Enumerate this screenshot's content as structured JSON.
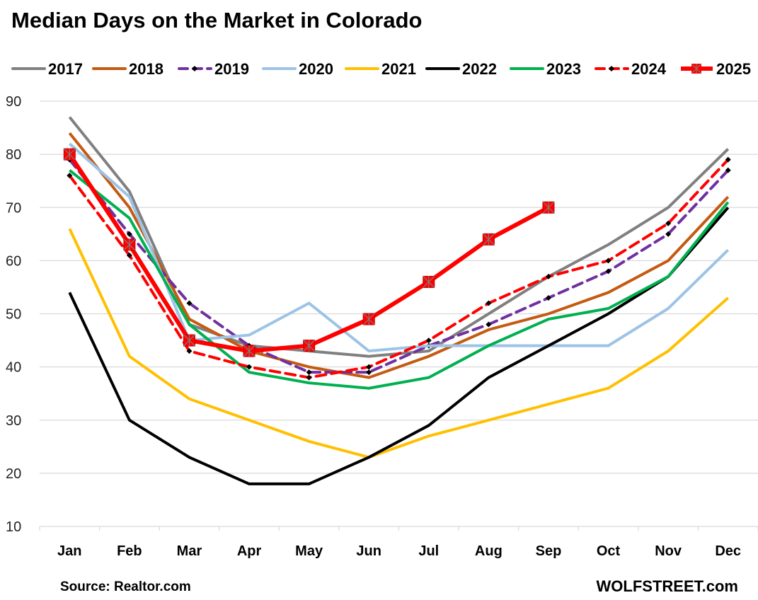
{
  "chart_data": {
    "type": "line",
    "title": "Median Days on the Market in Colorado",
    "xlabel": "",
    "ylabel": "",
    "categories": [
      "Jan",
      "Feb",
      "Mar",
      "Apr",
      "May",
      "Jun",
      "Jul",
      "Aug",
      "Sep",
      "Oct",
      "Nov",
      "Dec"
    ],
    "ylim": [
      10,
      90
    ],
    "yticks": [
      10,
      20,
      30,
      40,
      50,
      60,
      70,
      80,
      90
    ],
    "grid": true,
    "legend_position": "top",
    "series": [
      {
        "name": "2017",
        "color": "#808080",
        "style": "solid",
        "markers": "none",
        "values": [
          87,
          73,
          48,
          44,
          43,
          42,
          43,
          50,
          57,
          63,
          70,
          81
        ]
      },
      {
        "name": "2018",
        "color": "#C55A11",
        "style": "solid",
        "markers": "none",
        "values": [
          84,
          70,
          49,
          43,
          40,
          38,
          42,
          47,
          50,
          54,
          60,
          72
        ]
      },
      {
        "name": "2019",
        "color": "#7030A0",
        "style": "dashed",
        "markers": "diamond",
        "values": [
          79,
          65,
          52,
          44,
          39,
          39,
          44,
          48,
          53,
          58,
          65,
          77
        ]
      },
      {
        "name": "2020",
        "color": "#9DC3E6",
        "style": "solid",
        "markers": "none",
        "values": [
          82,
          72,
          45,
          46,
          52,
          43,
          44,
          44,
          44,
          44,
          51,
          62
        ]
      },
      {
        "name": "2021",
        "color": "#FFC000",
        "style": "solid",
        "markers": "none",
        "values": [
          66,
          42,
          34,
          30,
          26,
          23,
          27,
          30,
          33,
          36,
          43,
          53
        ]
      },
      {
        "name": "2022",
        "color": "#000000",
        "style": "solid",
        "markers": "none",
        "values": [
          54,
          30,
          23,
          18,
          18,
          23,
          29,
          38,
          44,
          50,
          57,
          70
        ]
      },
      {
        "name": "2023",
        "color": "#00B050",
        "style": "solid",
        "markers": "none",
        "values": [
          77,
          68,
          48,
          39,
          37,
          36,
          38,
          44,
          49,
          51,
          57,
          71
        ]
      },
      {
        "name": "2024",
        "color": "#FF0000",
        "style": "dashed",
        "markers": "diamond",
        "values": [
          76,
          61,
          43,
          40,
          38,
          40,
          45,
          52,
          57,
          60,
          67,
          79
        ]
      },
      {
        "name": "2025",
        "color": "#FF0000",
        "style": "solid-thick",
        "markers": "square",
        "values": [
          80,
          63,
          45,
          43,
          44,
          49,
          56,
          64,
          70,
          null,
          null,
          null
        ]
      }
    ],
    "annotations": {
      "source": "Source: Realtor.com",
      "brand": "WOLFSTREET.com"
    }
  }
}
